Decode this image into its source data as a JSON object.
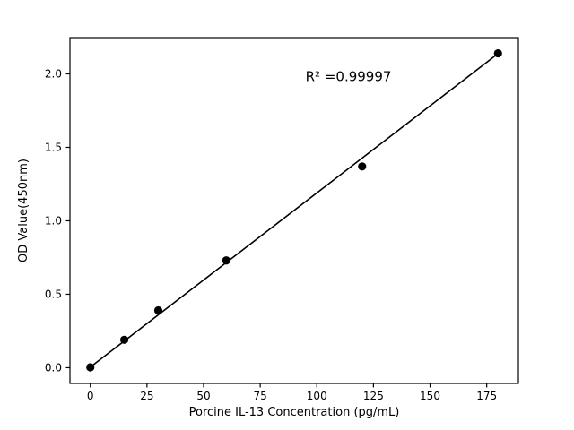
{
  "figure": {
    "background": "#ffffff"
  },
  "chart_data": {
    "type": "scatter",
    "title": "",
    "xlabel": "Porcine IL-13 Concentration (pg/mL)",
    "ylabel": "OD Value(450nm)",
    "x": [
      0,
      15,
      30,
      60,
      120,
      180
    ],
    "y": [
      0.003,
      0.19,
      0.39,
      0.73,
      1.37,
      2.14
    ],
    "fit_line": {
      "x_start": 0,
      "x_end": 180,
      "slope": 0.011857,
      "intercept": 0.004
    },
    "annotation": {
      "text": "R² =0.99997",
      "x": 95,
      "y": 1.95
    },
    "xlim": [
      -9,
      189
    ],
    "ylim": [
      -0.107,
      2.247
    ],
    "x_ticks": [
      0,
      25,
      50,
      75,
      100,
      125,
      150,
      175
    ],
    "x_tick_labels": [
      "0",
      "25",
      "50",
      "75",
      "100",
      "125",
      "150",
      "175"
    ],
    "y_ticks": [
      0.0,
      0.5,
      1.0,
      1.5,
      2.0
    ],
    "y_tick_labels": [
      "0.0",
      "0.5",
      "1.0",
      "1.5",
      "2.0"
    ],
    "marker_color": "#000000",
    "line_color": "#000000",
    "axis_color": "#000000",
    "grid": false,
    "legend": "none"
  }
}
